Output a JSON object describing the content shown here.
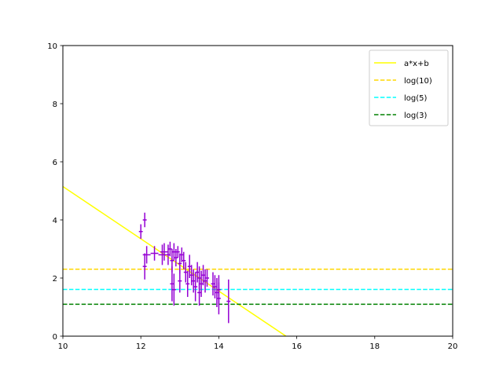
{
  "chart_data": {
    "type": "scatter",
    "title": "",
    "xlabel": "",
    "ylabel": "",
    "xlim": [
      10,
      20
    ],
    "ylim": [
      0,
      10
    ],
    "x_ticks": [
      10,
      12,
      14,
      16,
      18,
      20
    ],
    "y_ticks": [
      0,
      2,
      4,
      6,
      8,
      10
    ],
    "x_tick_labels": [
      "10",
      "12",
      "14",
      "16",
      "18",
      "20"
    ],
    "y_tick_labels": [
      "0",
      "2",
      "4",
      "6",
      "8",
      "10"
    ],
    "grid": false,
    "legend_position": "upper-right",
    "scatter_color": "#9400d3",
    "points": [
      {
        "x": 12.0,
        "y": 3.6,
        "xerr": 0.05,
        "yerr": 0.25
      },
      {
        "x": 12.1,
        "y": 4.0,
        "xerr": 0.05,
        "yerr": 0.25
      },
      {
        "x": 12.1,
        "y": 2.4,
        "xerr": 0.05,
        "yerr": 0.45
      },
      {
        "x": 12.15,
        "y": 2.8,
        "xerr": 0.1,
        "yerr": 0.3
      },
      {
        "x": 12.35,
        "y": 2.85,
        "xerr": 0.1,
        "yerr": 0.25
      },
      {
        "x": 12.55,
        "y": 2.8,
        "xerr": 0.1,
        "yerr": 0.35
      },
      {
        "x": 12.6,
        "y": 2.9,
        "xerr": 0.1,
        "yerr": 0.3
      },
      {
        "x": 12.7,
        "y": 2.8,
        "xerr": 0.05,
        "yerr": 0.35
      },
      {
        "x": 12.75,
        "y": 3.0,
        "xerr": 0.05,
        "yerr": 0.25
      },
      {
        "x": 12.8,
        "y": 2.6,
        "xerr": 0.05,
        "yerr": 0.4
      },
      {
        "x": 12.8,
        "y": 1.8,
        "xerr": 0.05,
        "yerr": 0.6
      },
      {
        "x": 12.85,
        "y": 2.9,
        "xerr": 0.05,
        "yerr": 0.3
      },
      {
        "x": 12.85,
        "y": 1.6,
        "xerr": 0.05,
        "yerr": 0.55
      },
      {
        "x": 12.9,
        "y": 2.7,
        "xerr": 0.05,
        "yerr": 0.3
      },
      {
        "x": 12.95,
        "y": 2.9,
        "xerr": 0.05,
        "yerr": 0.2
      },
      {
        "x": 13.0,
        "y": 2.5,
        "xerr": 0.05,
        "yerr": 0.35
      },
      {
        "x": 13.0,
        "y": 1.9,
        "xerr": 0.05,
        "yerr": 0.4
      },
      {
        "x": 13.05,
        "y": 2.8,
        "xerr": 0.05,
        "yerr": 0.25
      },
      {
        "x": 13.1,
        "y": 2.6,
        "xerr": 0.05,
        "yerr": 0.3
      },
      {
        "x": 13.15,
        "y": 2.2,
        "xerr": 0.05,
        "yerr": 0.35
      },
      {
        "x": 13.2,
        "y": 1.8,
        "xerr": 0.05,
        "yerr": 0.45
      },
      {
        "x": 13.25,
        "y": 2.4,
        "xerr": 0.05,
        "yerr": 0.4
      },
      {
        "x": 13.3,
        "y": 2.1,
        "xerr": 0.05,
        "yerr": 0.35
      },
      {
        "x": 13.35,
        "y": 1.9,
        "xerr": 0.05,
        "yerr": 0.4
      },
      {
        "x": 13.4,
        "y": 1.7,
        "xerr": 0.05,
        "yerr": 0.5
      },
      {
        "x": 13.45,
        "y": 2.2,
        "xerr": 0.05,
        "yerr": 0.35
      },
      {
        "x": 13.5,
        "y": 1.5,
        "xerr": 0.05,
        "yerr": 0.45
      },
      {
        "x": 13.5,
        "y": 2.0,
        "xerr": 0.05,
        "yerr": 0.4
      },
      {
        "x": 13.55,
        "y": 1.8,
        "xerr": 0.05,
        "yerr": 0.45
      },
      {
        "x": 13.6,
        "y": 2.1,
        "xerr": 0.05,
        "yerr": 0.35
      },
      {
        "x": 13.65,
        "y": 1.9,
        "xerr": 0.05,
        "yerr": 0.4
      },
      {
        "x": 13.7,
        "y": 2.0,
        "xerr": 0.05,
        "yerr": 0.3
      },
      {
        "x": 13.85,
        "y": 1.8,
        "xerr": 0.05,
        "yerr": 0.4
      },
      {
        "x": 13.9,
        "y": 1.7,
        "xerr": 0.05,
        "yerr": 0.4
      },
      {
        "x": 13.95,
        "y": 1.5,
        "xerr": 0.05,
        "yerr": 0.5
      },
      {
        "x": 14.0,
        "y": 1.6,
        "xerr": 0.05,
        "yerr": 0.5
      },
      {
        "x": 14.0,
        "y": 1.3,
        "xerr": 0.05,
        "yerr": 0.55
      },
      {
        "x": 14.25,
        "y": 1.2,
        "xerr": 0.05,
        "yerr": 0.75
      }
    ],
    "series": [
      {
        "name": "a*x+b",
        "kind": "fit",
        "a": -0.9,
        "b": 14.15,
        "x_range": [
          10,
          15.72
        ],
        "color": "#ffff00",
        "dash": "solid"
      },
      {
        "name": "log(10)",
        "kind": "hline",
        "y": 2.302585,
        "color": "#ffd700",
        "dash": "dashed"
      },
      {
        "name": "log(5)",
        "kind": "hline",
        "y": 1.609438,
        "color": "#00ffff",
        "dash": "dashed"
      },
      {
        "name": "log(3)",
        "kind": "hline",
        "y": 1.098612,
        "color": "#008000",
        "dash": "dashed"
      }
    ]
  }
}
